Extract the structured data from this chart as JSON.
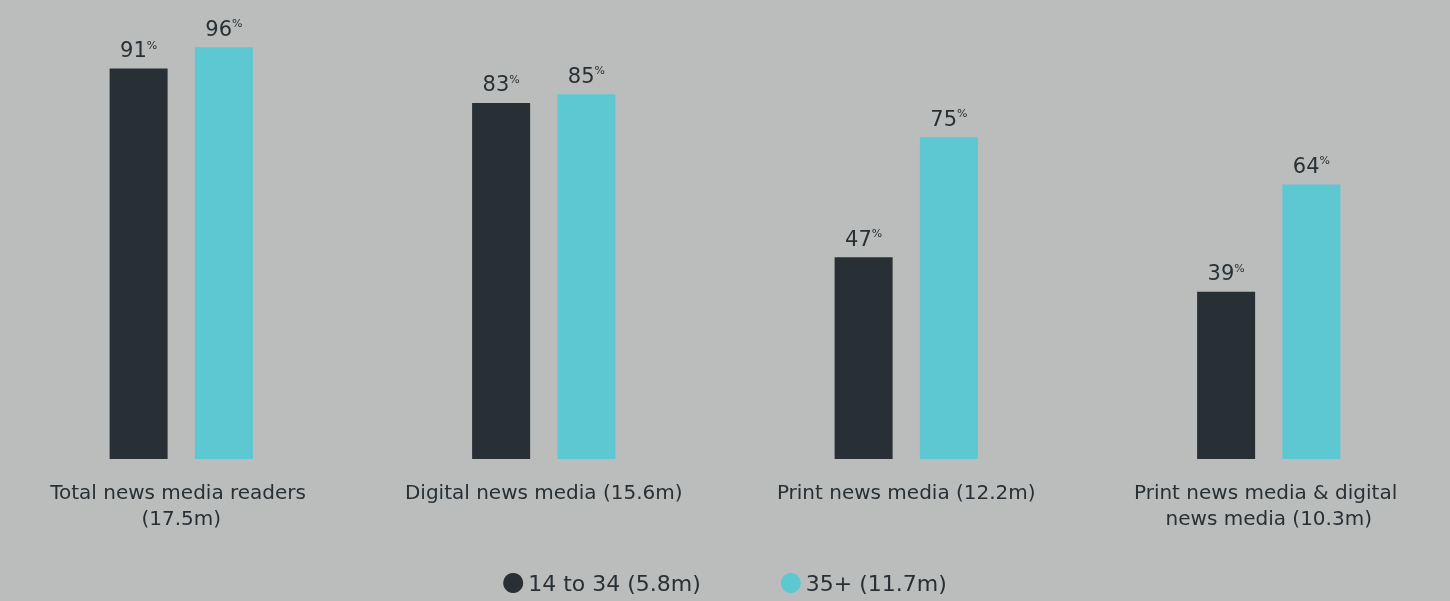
{
  "chart_data": {
    "type": "bar",
    "categories": [
      "Total news media readers (17.5m)",
      "Digital news media (15.6m)",
      "Print news media (12.2m)",
      "Print news media & digital news media (10.3m)"
    ],
    "series": [
      {
        "name": "14 to 34 (5.8m)",
        "color": "#283035",
        "values": [
          91,
          83,
          47,
          39
        ],
        "value_labels": [
          "91%",
          "83%",
          "47%",
          "39%"
        ]
      },
      {
        "name": "35+ (11.7m)",
        "color": "#5ec8d2",
        "values": [
          96,
          85,
          75,
          64
        ],
        "value_labels": [
          "96%",
          "85%",
          "75%",
          "64%"
        ]
      }
    ],
    "legend": "bottom",
    "grid": false
  }
}
